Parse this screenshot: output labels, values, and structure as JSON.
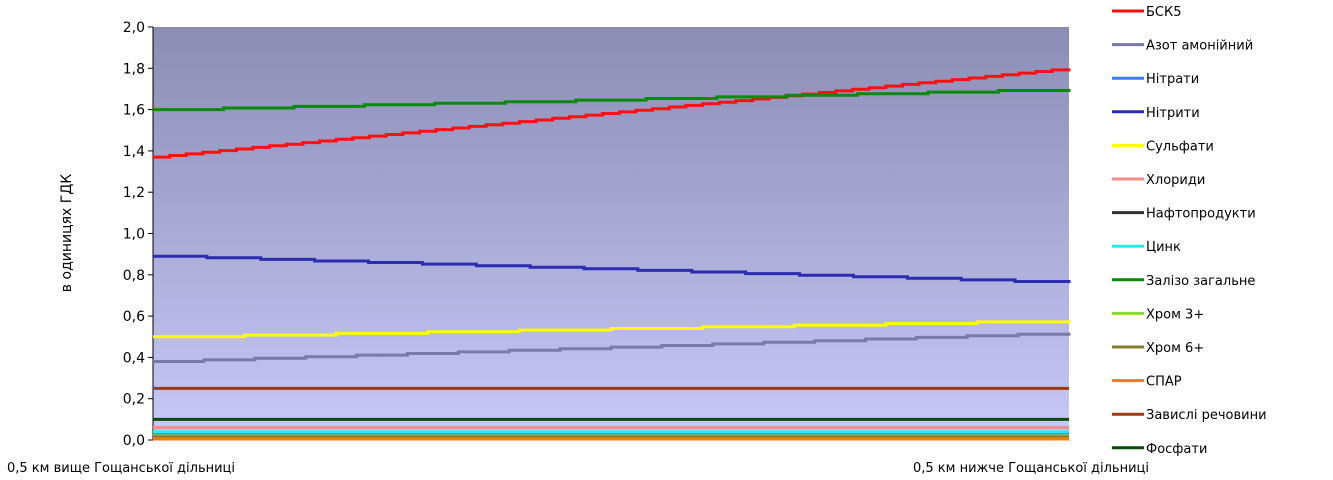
{
  "chart_data": {
    "type": "line",
    "title": "",
    "ylabel": "в одиницях ГДК",
    "xlabel": "",
    "categories": [
      "0,5 км вище Гощанської дільниці",
      "0,5 км нижче Гощанської дільниці"
    ],
    "ylim": [
      0,
      2.0
    ],
    "yticks": [
      "0,0",
      "0,2",
      "0,4",
      "0,6",
      "0,8",
      "1,0",
      "1,2",
      "1,4",
      "1,6",
      "1,8",
      "2,0"
    ],
    "ytick_values": [
      0,
      0.2,
      0.4,
      0.6,
      0.8,
      1.0,
      1.2,
      1.4,
      1.6,
      1.8,
      2.0
    ],
    "grid": false,
    "legend_position": "right",
    "plot_background": {
      "top": "#8b8db4",
      "bottom": "#c8c9f8"
    },
    "series": [
      {
        "name": "БСК5",
        "color": "#ff1010",
        "values": [
          1.37,
          1.8
        ]
      },
      {
        "name": "Азот амонійний",
        "color": "#7a7aa8",
        "values": [
          0.38,
          0.52
        ]
      },
      {
        "name": "Нітрати",
        "color": "#3a7ef0",
        "values": [
          0.03,
          0.03
        ]
      },
      {
        "name": "Нітрити",
        "color": "#2c2cb0",
        "values": [
          0.89,
          0.76
        ]
      },
      {
        "name": "Сульфати",
        "color": "#ffff00",
        "values": [
          0.5,
          0.58
        ]
      },
      {
        "name": "Хлориди",
        "color": "#f28a8a",
        "values": [
          0.06,
          0.06
        ]
      },
      {
        "name": "Нафтопродукти",
        "color": "#303030",
        "values": [
          0.01,
          0.01
        ]
      },
      {
        "name": "Цинк",
        "color": "#20f0f0",
        "values": [
          0.04,
          0.04
        ]
      },
      {
        "name": "Залізо загальне",
        "color": "#0a8a0a",
        "values": [
          1.6,
          1.7
        ]
      },
      {
        "name": "Хром 3+",
        "color": "#8adc2a",
        "values": [
          0.02,
          0.02
        ]
      },
      {
        "name": "Хром 6+",
        "color": "#8a7a2a",
        "values": [
          0.015,
          0.015
        ]
      },
      {
        "name": "СПАР",
        "color": "#ff7a10",
        "values": [
          0.005,
          0.005
        ]
      },
      {
        "name": "Завислі речовини",
        "color": "#a03a10",
        "values": [
          0.25,
          0.25
        ]
      },
      {
        "name": "Фосфати",
        "color": "#0a4a0a",
        "values": [
          0.1,
          0.1
        ]
      }
    ]
  }
}
